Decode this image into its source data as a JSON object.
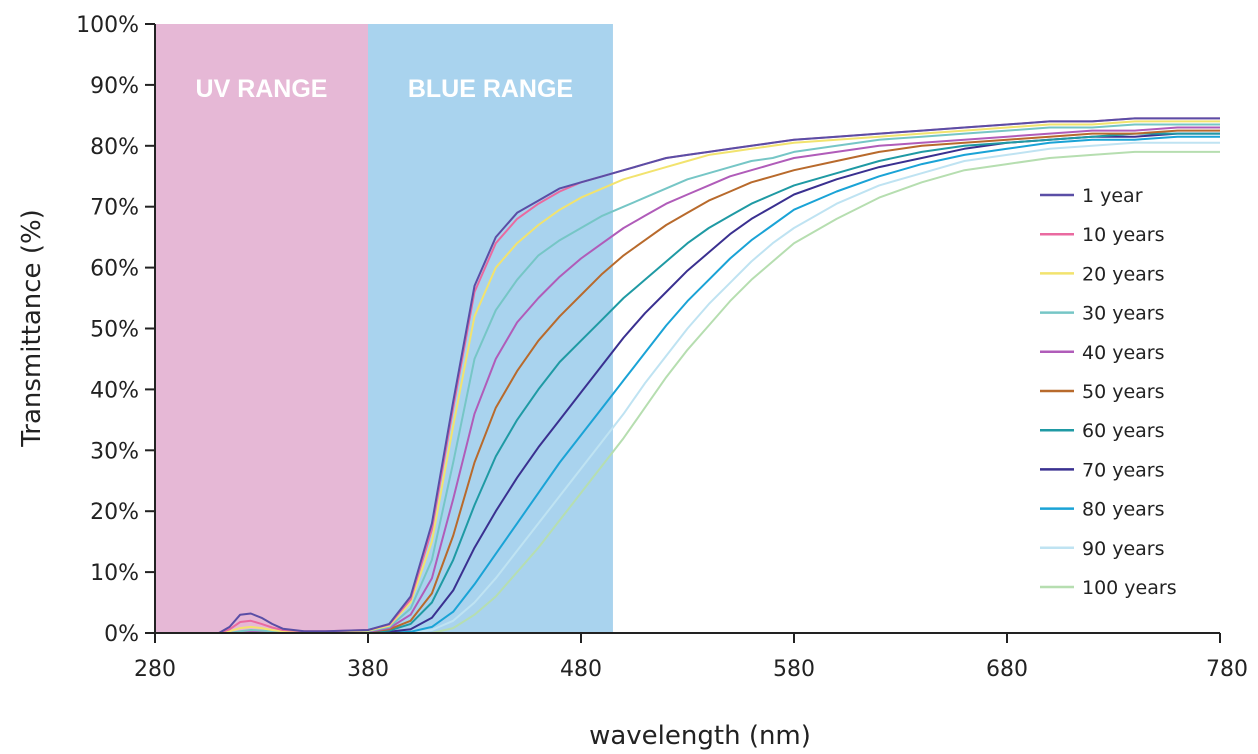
{
  "chart_data": {
    "type": "line",
    "title": "",
    "xlabel": "wavelength (nm)",
    "ylabel": "Transmittance (%)",
    "xlim": [
      280,
      780
    ],
    "ylim": [
      0,
      100
    ],
    "x_ticks": [
      "280",
      "380",
      "480",
      "580",
      "680",
      "780"
    ],
    "y_ticks": [
      "0%",
      "10%",
      "20%",
      "30%",
      "40%",
      "50%",
      "60%",
      "70%",
      "80%",
      "90%",
      "100%"
    ],
    "grid": false,
    "legend_position": "right",
    "bands": [
      {
        "label": "UV RANGE",
        "x_start": 280,
        "x_end": 380,
        "color": "#e6b8d6"
      },
      {
        "label": "BLUE RANGE",
        "x_start": 380,
        "x_end": 495,
        "color": "#a9d3ee"
      }
    ],
    "x": [
      280,
      310,
      315,
      320,
      325,
      330,
      335,
      340,
      350,
      360,
      370,
      380,
      390,
      400,
      410,
      420,
      430,
      440,
      450,
      460,
      470,
      480,
      490,
      500,
      510,
      520,
      530,
      540,
      550,
      560,
      570,
      580,
      600,
      620,
      640,
      660,
      680,
      700,
      720,
      740,
      760,
      780
    ],
    "series": [
      {
        "name": "1 year",
        "color": "#5a4ea6",
        "values": [
          0,
          0,
          1,
          3,
          3.2,
          2.5,
          1.5,
          0.7,
          0.3,
          0.3,
          0.4,
          0.5,
          1.5,
          6,
          18,
          38,
          57,
          65,
          69,
          71,
          73,
          74,
          75,
          76,
          77,
          78,
          78.5,
          79,
          79.5,
          80,
          80.5,
          81,
          81.5,
          82,
          82.5,
          83,
          83.5,
          84,
          84,
          84.5,
          84.5,
          84.5
        ]
      },
      {
        "name": "10 years",
        "color": "#ea6aa0",
        "values": [
          0,
          0,
          0.6,
          1.8,
          2,
          1.5,
          0.9,
          0.5,
          0.3,
          0.3,
          0.4,
          0.5,
          1.4,
          5.5,
          17,
          37,
          56,
          64,
          68,
          70.5,
          72.5,
          74,
          75,
          76,
          77,
          78,
          78.5,
          79,
          79.5,
          80,
          80.5,
          81,
          81.5,
          82,
          82.5,
          83,
          83.5,
          84,
          84,
          84.5,
          84.5,
          84.5
        ]
      },
      {
        "name": "20 years",
        "color": "#f2e36e",
        "values": [
          0,
          0,
          0.3,
          0.8,
          1,
          0.8,
          0.5,
          0.3,
          0.2,
          0.2,
          0.3,
          0.4,
          1.2,
          5,
          15,
          34,
          52,
          60,
          64,
          67,
          69.5,
          71.5,
          73,
          74.5,
          75.5,
          76.5,
          77.5,
          78.5,
          79,
          79.5,
          80,
          80.5,
          81,
          81.5,
          82,
          82.5,
          83,
          83.5,
          83.5,
          84,
          84,
          84
        ]
      },
      {
        "name": "30 years",
        "color": "#76c6c6",
        "values": [
          0,
          0,
          0,
          0.3,
          0.5,
          0.4,
          0.3,
          0.2,
          0.2,
          0.2,
          0.2,
          0.3,
          1,
          4,
          12,
          28,
          45,
          53,
          58,
          62,
          64.5,
          66.5,
          68.5,
          70,
          71.5,
          73,
          74.5,
          75.5,
          76.5,
          77.5,
          78,
          79,
          80,
          81,
          81.5,
          82,
          82.5,
          83,
          83,
          83.5,
          83.5,
          83.5
        ]
      },
      {
        "name": "40 years",
        "color": "#b05cb9",
        "values": [
          0,
          0,
          0,
          0,
          0.2,
          0.2,
          0.2,
          0.2,
          0.2,
          0.2,
          0.2,
          0.2,
          0.8,
          3,
          9,
          22,
          36,
          45,
          51,
          55,
          58.5,
          61.5,
          64,
          66.5,
          68.5,
          70.5,
          72,
          73.5,
          75,
          76,
          77,
          78,
          79,
          80,
          80.5,
          81,
          81.5,
          82,
          82.5,
          82.5,
          83,
          83
        ]
      },
      {
        "name": "50 years",
        "color": "#b86a2c",
        "values": [
          0,
          0,
          0,
          0,
          0.1,
          0.1,
          0.1,
          0.1,
          0.1,
          0.1,
          0.2,
          0.2,
          0.6,
          2,
          6.5,
          16,
          28,
          37,
          43,
          48,
          52,
          55.5,
          59,
          62,
          64.5,
          67,
          69,
          71,
          72.5,
          74,
          75,
          76,
          77.5,
          79,
          80,
          80.5,
          81,
          81.5,
          82,
          82,
          82.5,
          82.5
        ]
      },
      {
        "name": "60 years",
        "color": "#1f9aa4",
        "values": [
          0,
          0,
          0,
          0,
          0,
          0,
          0,
          0,
          0,
          0.1,
          0.1,
          0.1,
          0.4,
          1.5,
          5,
          12,
          21,
          29,
          35,
          40,
          44.5,
          48,
          51.5,
          55,
          58,
          61,
          64,
          66.5,
          68.5,
          70.5,
          72,
          73.5,
          75.5,
          77.5,
          79,
          80,
          80.5,
          81,
          81.5,
          82,
          82,
          82
        ]
      },
      {
        "name": "70 years",
        "color": "#3a3090",
        "values": [
          0,
          0,
          0,
          0,
          0,
          0,
          0,
          0,
          0,
          0,
          0,
          0,
          0.2,
          0.6,
          2.5,
          7,
          14,
          20,
          25.5,
          30.5,
          35,
          39.5,
          44,
          48.5,
          52.5,
          56,
          59.5,
          62.5,
          65.5,
          68,
          70,
          72,
          74.5,
          76.5,
          78,
          79.5,
          80.5,
          81,
          81.5,
          81.5,
          82,
          82
        ]
      },
      {
        "name": "80 years",
        "color": "#1aa3d6",
        "values": [
          0,
          0,
          0,
          0,
          0,
          0,
          0,
          0,
          0,
          0,
          0,
          0,
          0,
          0.2,
          1,
          3.5,
          8,
          13,
          18,
          23,
          28,
          32.5,
          37,
          41.5,
          46,
          50.5,
          54.5,
          58,
          61.5,
          64.5,
          67,
          69.5,
          72.5,
          75,
          77,
          78.5,
          79.5,
          80.5,
          81,
          81,
          81.5,
          81.5
        ]
      },
      {
        "name": "90 years",
        "color": "#bfe3f2",
        "values": [
          0,
          0,
          0,
          0,
          0,
          0,
          0,
          0,
          0,
          0,
          0,
          0,
          0,
          0,
          0.5,
          2,
          5,
          9,
          13.5,
          18,
          22.5,
          27,
          31.5,
          36,
          41,
          45.5,
          50,
          54,
          57.5,
          61,
          64,
          66.5,
          70.5,
          73.5,
          75.5,
          77.5,
          78.5,
          79.5,
          80,
          80.5,
          80.5,
          80.5
        ]
      },
      {
        "name": "100 years",
        "color": "#b6deb0",
        "values": [
          0,
          0,
          0,
          0,
          0,
          0,
          0,
          0,
          0,
          0,
          0,
          0,
          0,
          0,
          0,
          0.8,
          3,
          6,
          10,
          14,
          18.5,
          23,
          27.5,
          32,
          37,
          42,
          46.5,
          50.5,
          54.5,
          58,
          61,
          64,
          68,
          71.5,
          74,
          76,
          77,
          78,
          78.5,
          79,
          79,
          79
        ]
      }
    ]
  }
}
